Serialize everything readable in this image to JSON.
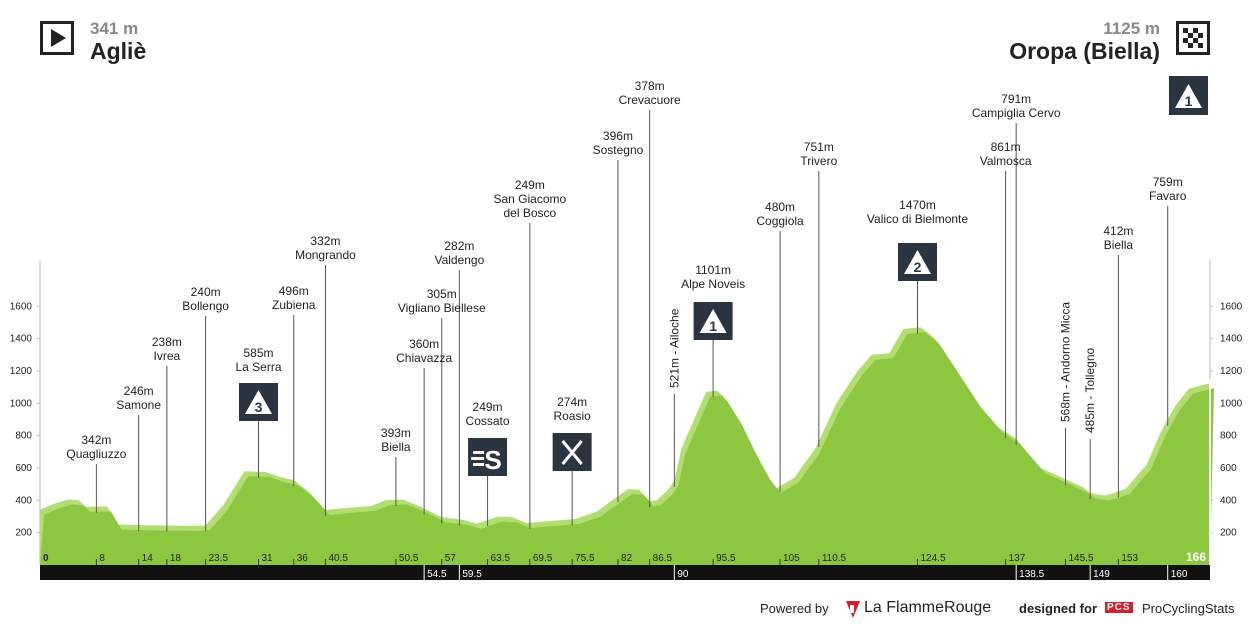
{
  "start": {
    "elevation": "341 m",
    "name": "Agliè"
  },
  "finish": {
    "elevation": "1125 m",
    "name": "Oropa (Biella)"
  },
  "finish_climb_category": "1",
  "footer": {
    "powered_by": "Powered by",
    "brand": "La FlammeRouge",
    "designed_for": "designed for",
    "pcs": "PCS",
    "pcs_name": "ProCyclingStats"
  },
  "colors": {
    "profile": "#8dc63f",
    "profile_light": "#b2dd72",
    "bar": "#111111",
    "marker": "#2b3542"
  },
  "chart_data": {
    "type": "area",
    "xlabel": "",
    "ylabel": "",
    "xlim": [
      0,
      166
    ],
    "ylim": [
      0,
      1900
    ],
    "y_ticks": [
      200,
      400,
      600,
      800,
      1000,
      1200,
      1400,
      1600
    ],
    "profile": [
      [
        0,
        341
      ],
      [
        2,
        380
      ],
      [
        4,
        405
      ],
      [
        5.5,
        400
      ],
      [
        6.5,
        360
      ],
      [
        9.5,
        362
      ],
      [
        11,
        250
      ],
      [
        16,
        245
      ],
      [
        22,
        242
      ],
      [
        23.5,
        245
      ],
      [
        26,
        370
      ],
      [
        29,
        580
      ],
      [
        32,
        575
      ],
      [
        34,
        545
      ],
      [
        36,
        525
      ],
      [
        38,
        460
      ],
      [
        40.5,
        340
      ],
      [
        44,
        355
      ],
      [
        47,
        365
      ],
      [
        49,
        400
      ],
      [
        51.5,
        405
      ],
      [
        54,
        360
      ],
      [
        57,
        295
      ],
      [
        60,
        280
      ],
      [
        62,
        255
      ],
      [
        65,
        300
      ],
      [
        67,
        295
      ],
      [
        69,
        260
      ],
      [
        72,
        270
      ],
      [
        76,
        285
      ],
      [
        79,
        330
      ],
      [
        81,
        395
      ],
      [
        83.5,
        470
      ],
      [
        85,
        465
      ],
      [
        86.5,
        395
      ],
      [
        87.5,
        400
      ],
      [
        89,
        460
      ],
      [
        90,
        520
      ],
      [
        91,
        720
      ],
      [
        93,
        920
      ],
      [
        94.5,
        1070
      ],
      [
        96,
        1080
      ],
      [
        97,
        1040
      ],
      [
        99,
        900
      ],
      [
        101,
        720
      ],
      [
        103,
        560
      ],
      [
        104.5,
        475
      ],
      [
        107,
        540
      ],
      [
        110,
        720
      ],
      [
        113,
        1000
      ],
      [
        116,
        1200
      ],
      [
        118,
        1300
      ],
      [
        120.5,
        1310
      ],
      [
        122.5,
        1460
      ],
      [
        125,
        1470
      ],
      [
        127,
        1400
      ],
      [
        130,
        1200
      ],
      [
        133,
        1000
      ],
      [
        136,
        850
      ],
      [
        138.5,
        780
      ],
      [
        140,
        700
      ],
      [
        142,
        600
      ],
      [
        145.5,
        530
      ],
      [
        148,
        480
      ],
      [
        149,
        445
      ],
      [
        151,
        430
      ],
      [
        152,
        440
      ],
      [
        154,
        470
      ],
      [
        157,
        620
      ],
      [
        159,
        820
      ],
      [
        161,
        980
      ],
      [
        163,
        1090
      ],
      [
        166,
        1125
      ]
    ],
    "km_ticks": [
      {
        "km": 8,
        "label": "8"
      },
      {
        "km": 14,
        "label": "14"
      },
      {
        "km": 18,
        "label": "18"
      },
      {
        "km": 23.5,
        "label": "23.5"
      },
      {
        "km": 31,
        "label": "31"
      },
      {
        "km": 36,
        "label": "36"
      },
      {
        "km": 40.5,
        "label": "40.5"
      },
      {
        "km": 50.5,
        "label": "50.5"
      },
      {
        "km": 57,
        "label": "57"
      },
      {
        "km": 63.5,
        "label": "63.5"
      },
      {
        "km": 69.5,
        "label": "69.5"
      },
      {
        "km": 75.5,
        "label": "75.5"
      },
      {
        "km": 82,
        "label": "82"
      },
      {
        "km": 86.5,
        "label": "86.5"
      },
      {
        "km": 95.5,
        "label": "95.5"
      },
      {
        "km": 105,
        "label": "105"
      },
      {
        "km": 110.5,
        "label": "110.5"
      },
      {
        "km": 124.5,
        "label": "124.5"
      },
      {
        "km": 137,
        "label": "137"
      },
      {
        "km": 145.5,
        "label": "145.5"
      },
      {
        "km": 153,
        "label": "153"
      }
    ],
    "bar_km": [
      {
        "km": 54.5,
        "label": "54.5"
      },
      {
        "km": 59.5,
        "label": "59.5"
      },
      {
        "km": 90,
        "label": "90"
      },
      {
        "km": 138.5,
        "label": "138.5"
      },
      {
        "km": 149,
        "label": "149"
      },
      {
        "km": 160,
        "label": "160"
      }
    ],
    "km_start_label": "0",
    "km_end_label": "166",
    "waypoints": [
      {
        "km": 8,
        "alt": "342m",
        "name": [
          "Quagliuzzo"
        ]
      },
      {
        "km": 14,
        "alt": "246m",
        "name": [
          "Samone"
        ]
      },
      {
        "km": 18,
        "alt": "238m",
        "name": [
          "Ivrea"
        ]
      },
      {
        "km": 23.5,
        "alt": "240m",
        "name": [
          "Bollengo"
        ]
      },
      {
        "km": 31,
        "alt": "585m",
        "name": [
          "La Serra"
        ],
        "icon": "kom-3-icon",
        "icon_label": "3"
      },
      {
        "km": 36,
        "alt": "496m",
        "name": [
          "Zubiena"
        ]
      },
      {
        "km": 40.5,
        "alt": "332m",
        "name": [
          "Mongrando"
        ]
      },
      {
        "km": 50.5,
        "alt": "393m",
        "name": [
          "Biella"
        ]
      },
      {
        "km": 54.5,
        "alt": "360m",
        "name": [
          "Chiavazza"
        ]
      },
      {
        "km": 57,
        "alt": "305m",
        "name": [
          "Vigliano Biellese"
        ]
      },
      {
        "km": 59.5,
        "alt": "282m",
        "name": [
          "Valdengo"
        ]
      },
      {
        "km": 63.5,
        "alt": "249m",
        "name": [
          "Cossato"
        ],
        "icon": "sprint-icon"
      },
      {
        "km": 69.5,
        "alt": "249m",
        "name": [
          "San Giacomo",
          "del Bosco"
        ]
      },
      {
        "km": 75.5,
        "alt": "274m",
        "name": [
          "Roasio"
        ],
        "icon": "feed-zone-icon"
      },
      {
        "km": 82,
        "alt": "396m",
        "name": [
          "Sostegno"
        ]
      },
      {
        "km": 86.5,
        "alt": "378m",
        "name": [
          "Crevacuore"
        ]
      },
      {
        "km": 90,
        "alt": "521m",
        "name": [
          "Ailoche"
        ],
        "vertical": true,
        "vtext": "521m  -  Ailoche"
      },
      {
        "km": 95.5,
        "alt": "1101m",
        "name": [
          "Alpe Noveis"
        ],
        "icon": "kom-1-icon",
        "icon_label": "1"
      },
      {
        "km": 105,
        "alt": "480m",
        "name": [
          "Coggiola"
        ]
      },
      {
        "km": 110.5,
        "alt": "751m",
        "name": [
          "Trivero"
        ]
      },
      {
        "km": 124.5,
        "alt": "1470m",
        "name": [
          "Valico di Bielmonte"
        ],
        "icon": "kom-2-icon",
        "icon_label": "2"
      },
      {
        "km": 137,
        "alt": "861m",
        "name": [
          "Valmosca"
        ]
      },
      {
        "km": 138.5,
        "alt": "791m",
        "name": [
          "Campiglia Cervo"
        ]
      },
      {
        "km": 145.5,
        "alt": "568m",
        "name": [
          "Andorno Micca"
        ],
        "vertical": true,
        "vtext": "568m  -  Andorno Micca"
      },
      {
        "km": 149,
        "alt": "485m",
        "name": [
          "Tollegno"
        ],
        "vertical": true,
        "vtext": "485m  -  Tollegno"
      },
      {
        "km": 153,
        "alt": "412m",
        "name": [
          "Biella"
        ]
      },
      {
        "km": 160,
        "alt": "759m",
        "name": [
          "Favaro"
        ]
      }
    ]
  }
}
